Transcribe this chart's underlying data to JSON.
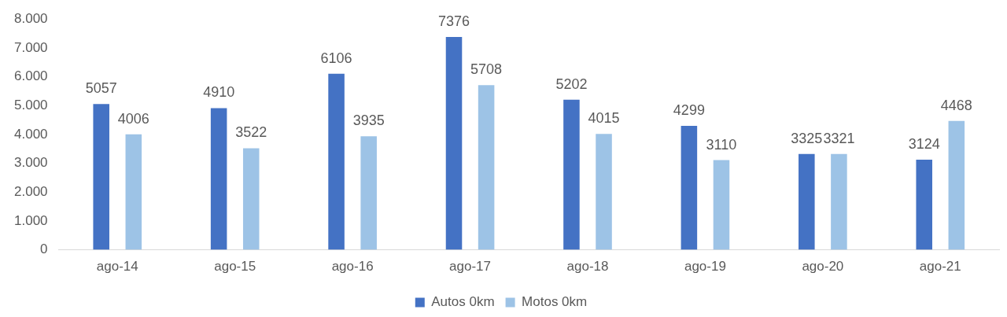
{
  "chart_data": {
    "type": "bar",
    "categories": [
      "ago-14",
      "ago-15",
      "ago-16",
      "ago-17",
      "ago-18",
      "ago-19",
      "ago-20",
      "ago-21"
    ],
    "series": [
      {
        "name": "Autos 0km",
        "color": "#4472c4",
        "values": [
          5057,
          4910,
          6106,
          7376,
          5202,
          4299,
          3325,
          3124
        ]
      },
      {
        "name": "Motos 0km",
        "color": "#9dc3e6",
        "values": [
          4006,
          3522,
          3935,
          5708,
          4015,
          3110,
          3321,
          4468
        ]
      }
    ],
    "ylim": [
      0,
      8000
    ],
    "yticks": [
      {
        "value": 0,
        "label": "0"
      },
      {
        "value": 1000,
        "label": "1.000"
      },
      {
        "value": 2000,
        "label": "2.000"
      },
      {
        "value": 3000,
        "label": "3.000"
      },
      {
        "value": 4000,
        "label": "4.000"
      },
      {
        "value": 5000,
        "label": "5.000"
      },
      {
        "value": 6000,
        "label": "6.000"
      },
      {
        "value": 7000,
        "label": "7.000"
      },
      {
        "value": 8000,
        "label": "8.000"
      }
    ],
    "grid": false,
    "legend": "bottom",
    "data_labels": true
  }
}
